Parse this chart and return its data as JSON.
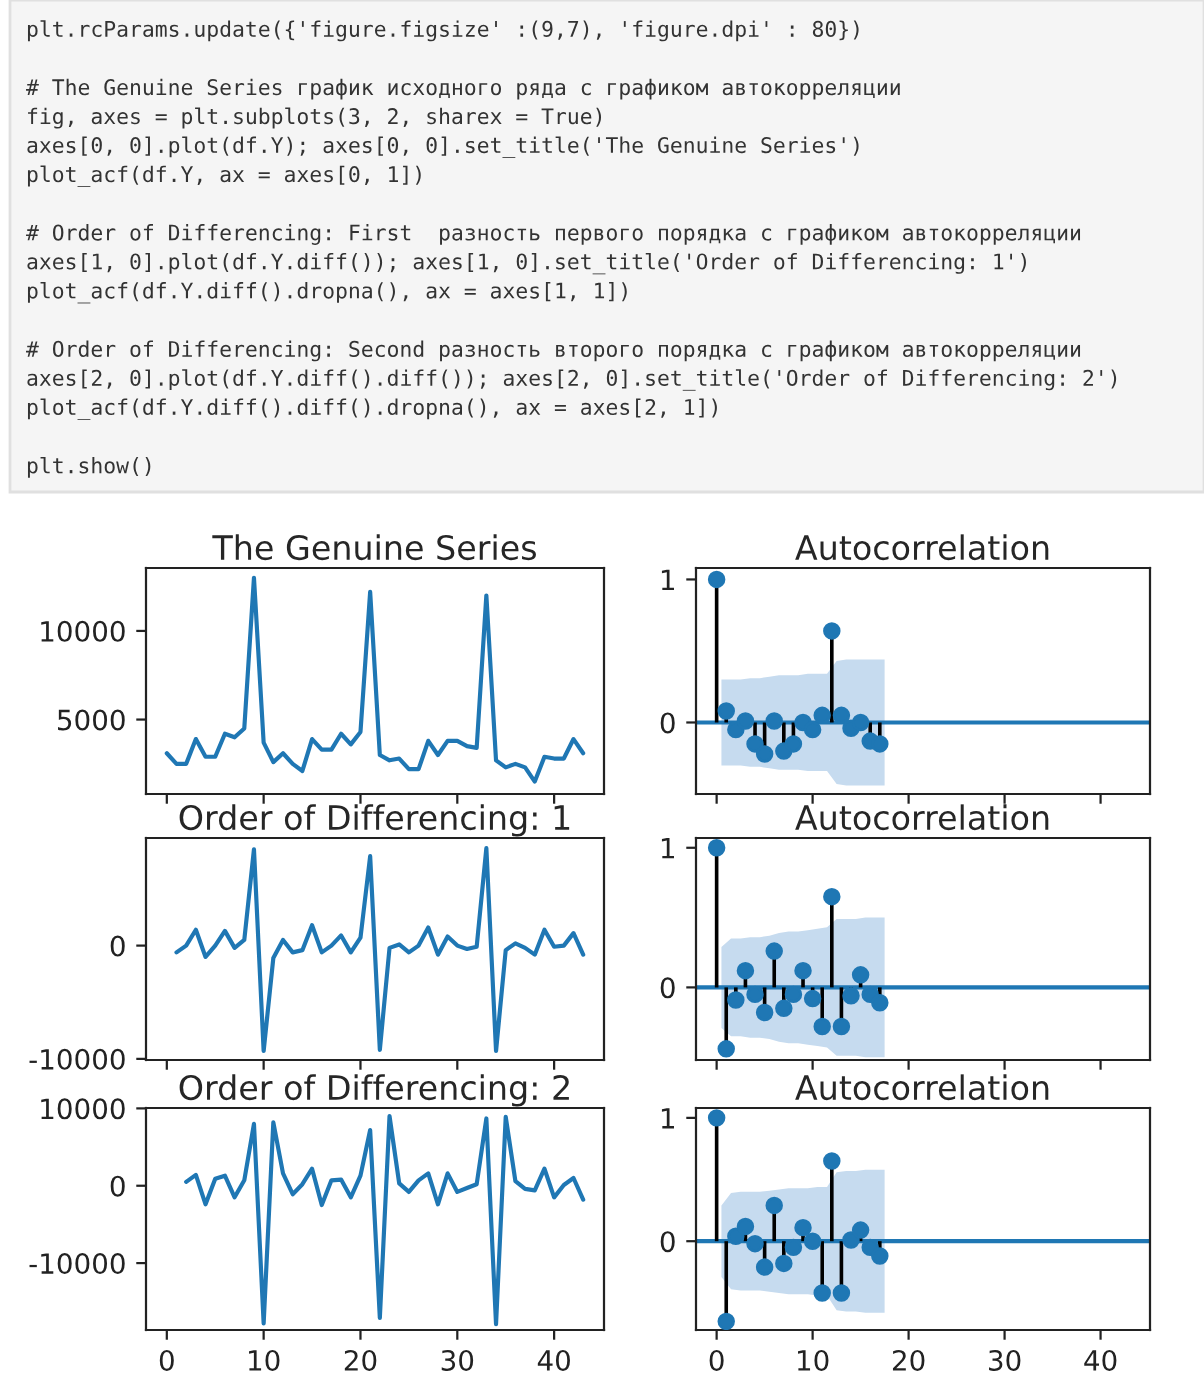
{
  "chart_data": [
    {
      "type": "line",
      "title": "The Genuine Series",
      "x": [
        0,
        1,
        2,
        3,
        4,
        5,
        6,
        7,
        8,
        9,
        10,
        11,
        12,
        13,
        14,
        15,
        16,
        17,
        18,
        19,
        20,
        21,
        22,
        23,
        24,
        25,
        26,
        27,
        28,
        29,
        30,
        31,
        32,
        33,
        34,
        35,
        36,
        37,
        38,
        39,
        40,
        41,
        42,
        43
      ],
      "series": [
        {
          "color": "#1f77b4",
          "values": [
            3100,
            2500,
            2500,
            3900,
            2900,
            2900,
            4200,
            4000,
            4500,
            13000,
            3700,
            2600,
            3100,
            2500,
            2100,
            3900,
            3300,
            3300,
            4200,
            3600,
            4300,
            12200,
            3000,
            2700,
            2800,
            2200,
            2200,
            3800,
            3000,
            3800,
            3800,
            3500,
            3400,
            12000,
            2700,
            2300,
            2500,
            2300,
            1500,
            2900,
            2800,
            2800,
            3900,
            3100
          ]
        }
      ],
      "xlim": [
        -2.15,
        45.15
      ],
      "xticks": [
        0,
        10,
        20,
        30,
        40
      ],
      "ylim": [
        800,
        13550
      ],
      "yticks": [
        5000,
        10000
      ],
      "tick_labels": "y",
      "annotations": [
        "plt.rcParams.update({'figure.figsize' :(9,7), 'figure.dpi' : 80})",
        "# The Genuine Series график исходного ряда с графиком автокорреляции\nfig, axes = plt.subplots(3, 2, sharex = True)\naxes[0, 0].plot(df.Y); axes[0, 0].set_title('The Genuine Series')\nplot_acf(df.Y, ax = axes[0, 1])",
        "# Order of Differencing: First  разность первого порядка с графиком автокорреляции\naxes[1, 0].plot(df.Y.diff()); axes[1, 0].set_title('Order of Differencing: 1')\nplot_acf(df.Y.diff().dropna(), ax = axes[1, 1])",
        "# Order of Differencing: Second разность второго порядка с графиком автокорреляции\naxes[2, 0].plot(df.Y.diff().diff()); axes[2, 0].set_title('Order of Differencing: 2')\nplot_acf(df.Y.diff().diff().dropna(), ax = axes[2, 1])",
        "plt.show()"
      ]
    },
    {
      "type": "lollipop",
      "title": "Autocorrelation",
      "x": [
        0,
        1,
        2,
        3,
        4,
        5,
        6,
        7,
        8,
        9,
        10,
        11,
        12,
        13,
        14,
        15,
        16,
        17
      ],
      "marker": "circle",
      "series": [
        {
          "color": "#1f77b4",
          "values": [
            1,
            0.08,
            -0.05,
            0.01,
            -0.15,
            -0.22,
            0.01,
            -0.2,
            -0.15,
            0.0,
            -0.05,
            0.05,
            0.64,
            0.05,
            -0.04,
            0.0,
            -0.13,
            -0.15
          ]
        },
        {
          "type": "line",
          "color": "#c6dbef",
          "x": [
            0.5,
            1.5,
            2.5,
            3.5,
            4.5,
            5.5,
            6.5,
            7.5,
            8.5,
            9.5,
            10.5,
            11.5,
            12.5,
            13.5,
            14.5,
            15.5,
            16.5,
            17.5
          ],
          "values": [
            null,
            null,
            null,
            null,
            null,
            null,
            null,
            null,
            null,
            null,
            null,
            null,
            null,
            null,
            null,
            null,
            null,
            null
          ],
          "lower": [
            -0.3,
            -0.3,
            -0.3,
            -0.31,
            -0.31,
            -0.32,
            -0.33,
            -0.33,
            -0.33,
            -0.34,
            -0.34,
            -0.34,
            -0.43,
            -0.44,
            -0.44,
            -0.44,
            -0.44,
            -0.44
          ],
          "upper": [
            0.3,
            0.3,
            0.3,
            0.31,
            0.31,
            0.32,
            0.33,
            0.33,
            0.33,
            0.34,
            0.34,
            0.34,
            0.43,
            0.44,
            0.44,
            0.44,
            0.44,
            0.44
          ]
        }
      ],
      "ref_lines": [
        {
          "axis": "y",
          "value": 0,
          "color": "#1f77b4"
        }
      ],
      "xlim": [
        -2.15,
        45.15
      ],
      "xticks": [
        0,
        10,
        20,
        30,
        40
      ],
      "ylim": [
        -0.5,
        1.08
      ],
      "yticks": [
        0,
        1
      ],
      "tick_labels": "y"
    },
    {
      "type": "line",
      "title": "Order of Differencing: 1",
      "x": [
        1,
        2,
        3,
        4,
        5,
        6,
        7,
        8,
        9,
        10,
        11,
        12,
        13,
        14,
        15,
        16,
        17,
        18,
        19,
        20,
        21,
        22,
        23,
        24,
        25,
        26,
        27,
        28,
        29,
        30,
        31,
        32,
        33,
        34,
        35,
        36,
        37,
        38,
        39,
        40,
        41,
        42,
        43
      ],
      "series": [
        {
          "color": "#1f77b4",
          "values": [
            -600,
            0,
            1400,
            -1000,
            0,
            1300,
            -200,
            500,
            8500,
            -9300,
            -1100,
            500,
            -600,
            -400,
            1800,
            -600,
            0,
            900,
            -600,
            700,
            7900,
            -9200,
            -200,
            100,
            -600,
            0,
            1600,
            -800,
            800,
            0,
            -300,
            -100,
            8600,
            -9300,
            -400,
            200,
            -200,
            -800,
            1400,
            -100,
            0,
            1100,
            -800
          ]
        }
      ],
      "xlim": [
        -2.15,
        45.15
      ],
      "xticks": [
        0,
        10,
        20,
        30,
        40
      ],
      "ylim": [
        -10100,
        9500
      ],
      "yticks": [
        -10000,
        0
      ],
      "tick_labels": "y"
    },
    {
      "type": "lollipop",
      "title": "Autocorrelation",
      "x": [
        0,
        1,
        2,
        3,
        4,
        5,
        6,
        7,
        8,
        9,
        10,
        11,
        12,
        13,
        14,
        15,
        16,
        17
      ],
      "marker": "circle",
      "series": [
        {
          "color": "#1f77b4",
          "values": [
            1,
            -0.44,
            -0.09,
            0.12,
            -0.05,
            -0.18,
            0.26,
            -0.15,
            -0.05,
            0.12,
            -0.08,
            -0.28,
            0.65,
            -0.28,
            -0.06,
            0.09,
            -0.05,
            -0.11
          ]
        },
        {
          "type": "line",
          "color": "#c6dbef",
          "x": [
            0.5,
            1.5,
            2.5,
            3.5,
            4.5,
            5.5,
            6.5,
            7.5,
            8.5,
            9.5,
            10.5,
            11.5,
            12.5,
            13.5,
            14.5,
            15.5,
            16.5,
            17.5
          ],
          "values": [
            null,
            null,
            null,
            null,
            null,
            null,
            null,
            null,
            null,
            null,
            null,
            null,
            null,
            null,
            null,
            null,
            null,
            null
          ],
          "lower": [
            -0.29,
            -0.35,
            -0.35,
            -0.36,
            -0.36,
            -0.37,
            -0.39,
            -0.4,
            -0.4,
            -0.41,
            -0.42,
            -0.43,
            -0.49,
            -0.49,
            -0.49,
            -0.5,
            -0.5,
            -0.5
          ],
          "upper": [
            0.29,
            0.35,
            0.35,
            0.36,
            0.36,
            0.37,
            0.39,
            0.4,
            0.4,
            0.41,
            0.42,
            0.43,
            0.49,
            0.49,
            0.49,
            0.5,
            0.5,
            0.5
          ]
        }
      ],
      "ref_lines": [
        {
          "axis": "y",
          "value": 0,
          "color": "#1f77b4"
        }
      ],
      "xlim": [
        -2.15,
        45.15
      ],
      "xticks": [
        0,
        10,
        20,
        30,
        40
      ],
      "ylim": [
        -0.52,
        1.07
      ],
      "yticks": [
        0,
        1
      ],
      "tick_labels": "y"
    },
    {
      "type": "line",
      "title": "Order of Differencing: 2",
      "x": [
        2,
        3,
        4,
        5,
        6,
        7,
        8,
        9,
        10,
        11,
        12,
        13,
        14,
        15,
        16,
        17,
        18,
        19,
        20,
        21,
        22,
        23,
        24,
        25,
        26,
        27,
        28,
        29,
        30,
        31,
        32,
        33,
        34,
        35,
        36,
        37,
        38,
        39,
        40,
        41,
        42,
        43
      ],
      "series": [
        {
          "color": "#1f77b4",
          "values": [
            500,
            1400,
            -2400,
            900,
            1300,
            -1500,
            700,
            8000,
            -17800,
            8200,
            1600,
            -1100,
            200,
            2200,
            -2500,
            700,
            800,
            -1500,
            1300,
            7200,
            -17100,
            9000,
            300,
            -800,
            700,
            1600,
            -2400,
            1600,
            -800,
            -300,
            200,
            8700,
            -17900,
            8900,
            600,
            -400,
            -600,
            2200,
            -1500,
            100,
            1000,
            -1800
          ]
        }
      ],
      "xlim": [
        -2.15,
        45.15
      ],
      "xticks": [
        0,
        10,
        20,
        30,
        40
      ],
      "ylim": [
        -18650,
        10050
      ],
      "yticks": [
        -10000,
        0,
        10000
      ]
    },
    {
      "type": "lollipop",
      "title": "Autocorrelation",
      "x": [
        0,
        1,
        2,
        3,
        4,
        5,
        6,
        7,
        8,
        9,
        10,
        11,
        12,
        13,
        14,
        15,
        16,
        17
      ],
      "marker": "circle",
      "series": [
        {
          "color": "#1f77b4",
          "values": [
            1,
            -0.65,
            0.04,
            0.12,
            -0.02,
            -0.21,
            0.29,
            -0.18,
            -0.05,
            0.11,
            0.0,
            -0.42,
            0.65,
            -0.42,
            0.01,
            0.09,
            -0.05,
            -0.12
          ]
        },
        {
          "type": "line",
          "color": "#c6dbef",
          "x": [
            0.5,
            1.5,
            2.5,
            3.5,
            4.5,
            5.5,
            6.5,
            7.5,
            8.5,
            9.5,
            10.5,
            11.5,
            12.5,
            13.5,
            14.5,
            15.5,
            16.5,
            17.5
          ],
          "values": [
            null,
            null,
            null,
            null,
            null,
            null,
            null,
            null,
            null,
            null,
            null,
            null,
            null,
            null,
            null,
            null,
            null,
            null
          ],
          "lower": [
            -0.29,
            -0.39,
            -0.4,
            -0.4,
            -0.4,
            -0.41,
            -0.42,
            -0.43,
            -0.43,
            -0.43,
            -0.44,
            -0.44,
            -0.56,
            -0.57,
            -0.57,
            -0.58,
            -0.58,
            -0.58
          ],
          "upper": [
            0.29,
            0.39,
            0.4,
            0.4,
            0.4,
            0.41,
            0.42,
            0.43,
            0.43,
            0.43,
            0.44,
            0.44,
            0.56,
            0.57,
            0.57,
            0.58,
            0.58,
            0.58
          ]
        }
      ],
      "ref_lines": [
        {
          "axis": "y",
          "value": 0,
          "color": "#1f77b4"
        }
      ],
      "xlim": [
        -2.15,
        45.15
      ],
      "xticks": [
        0,
        10,
        20,
        30,
        40
      ],
      "ylim": [
        -0.72,
        1.08
      ],
      "yticks": [
        0,
        1
      ]
    }
  ]
}
